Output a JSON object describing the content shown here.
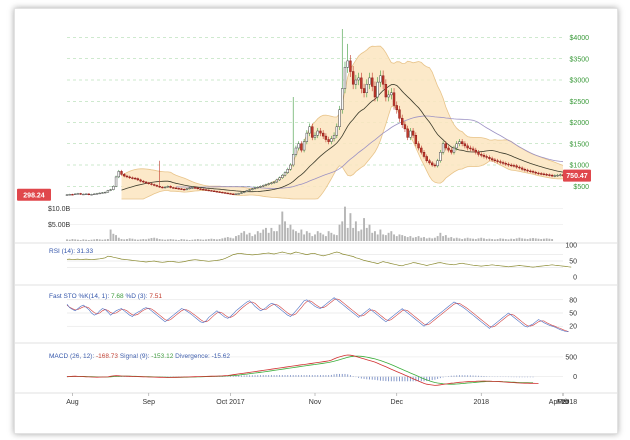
{
  "chart_data": {
    "type": "candlestick",
    "price": {
      "current_tag": "750.47",
      "left_tag": "298.24",
      "y_ticks": [
        "$500",
        "$1000",
        "$1500",
        "$2000",
        "$2500",
        "$3000",
        "$3500",
        "$4000"
      ],
      "y_tick_values": [
        500,
        1000,
        1500,
        2000,
        2500,
        3000,
        3500,
        4000
      ],
      "ylim": [
        200,
        4200
      ],
      "closes": [
        300,
        310,
        305,
        320,
        330,
        310,
        315,
        320,
        300,
        310,
        320,
        330,
        340,
        350,
        360,
        400,
        420,
        500,
        720,
        850,
        780,
        740,
        720,
        700,
        690,
        680,
        650,
        620,
        600,
        580,
        560,
        540,
        520,
        500,
        480,
        470,
        480,
        500,
        470,
        460,
        450,
        440,
        430,
        420,
        440,
        460,
        470,
        460,
        440,
        430,
        420,
        410,
        400,
        390,
        380,
        370,
        360,
        350,
        340,
        330,
        320,
        315,
        320,
        330,
        350,
        370,
        400,
        420,
        440,
        460,
        480,
        500,
        520,
        540,
        560,
        580,
        600,
        650,
        700,
        760,
        820,
        900,
        1000,
        1250,
        1400,
        1500,
        1350,
        1550,
        1750,
        1900,
        1650,
        1700,
        1800,
        1750,
        1680,
        1600,
        1550,
        1620,
        1700,
        1900,
        2300,
        2800,
        3300,
        3450,
        3200,
        2900,
        3000,
        3050,
        2800,
        2700,
        2900,
        3050,
        2850,
        2600,
        2950,
        3100,
        2900,
        2600,
        2650,
        2700,
        2400,
        2300,
        2100,
        1950,
        1850,
        1650,
        1800,
        1700,
        1500,
        1400,
        1300,
        1200,
        1100,
        1050,
        1000,
        980,
        1100,
        1300,
        1500,
        1400,
        1350,
        1300,
        1400,
        1500,
        1550,
        1500,
        1450,
        1400,
        1380,
        1350,
        1300,
        1250,
        1230,
        1200,
        1180,
        1150,
        1120,
        1100,
        1080,
        1060,
        1040,
        1020,
        1000,
        990,
        980,
        950,
        930,
        900,
        880,
        860,
        850,
        830,
        810,
        800,
        790,
        780,
        770,
        760,
        740,
        750,
        760,
        770,
        750
      ],
      "spikes": [
        {
          "i": 34,
          "high": 1100
        },
        {
          "i": 83,
          "high": 2600
        },
        {
          "i": 101,
          "high": 4200
        },
        {
          "i": 103,
          "high": 3850
        }
      ]
    },
    "volume": {
      "ticks": [
        "$10.0B",
        "$5.00B"
      ],
      "tick_values": [
        10,
        5
      ],
      "values_b": [
        0.5,
        0.4,
        0.6,
        0.5,
        0.4,
        0.3,
        0.5,
        0.4,
        0.3,
        0.4,
        0.5,
        0.6,
        0.5,
        0.4,
        0.5,
        0.6,
        3.5,
        2.2,
        1.8,
        1.0,
        0.6,
        0.5,
        0.6,
        0.8,
        0.7,
        0.5,
        0.4,
        0.5,
        0.6,
        0.5,
        0.7,
        0.9,
        1.0,
        0.8,
        0.6,
        0.5,
        0.4,
        0.5,
        0.6,
        0.5,
        0.4,
        0.3,
        0.6,
        0.5,
        0.4,
        0.3,
        0.4,
        0.5,
        0.6,
        0.5,
        0.4,
        0.5,
        0.6,
        0.7,
        0.6,
        0.5,
        0.6,
        0.8,
        1.0,
        1.2,
        1.0,
        0.8,
        1.5,
        1.8,
        2.5,
        3.0,
        2.0,
        2.5,
        1.5,
        2.0,
        3.0,
        2.5,
        3.5,
        4.0,
        2.5,
        4.0,
        3.0,
        3.0,
        5.0,
        9.0,
        6.0,
        4.0,
        5.0,
        3.5,
        3.0,
        2.5,
        3.5,
        2.0,
        3.0,
        2.5,
        1.5,
        2.0,
        3.0,
        2.5,
        2.0,
        1.5,
        3.0,
        2.5,
        2.0,
        1.8,
        5.0,
        6.0,
        10.5,
        4.0,
        8.5,
        4.0,
        6.0,
        3.0,
        3.5,
        7.0,
        4.0,
        5.0,
        2.5,
        3.0,
        2.0,
        3.5,
        2.0,
        1.8,
        2.5,
        3.0,
        2.0,
        1.5,
        2.0,
        1.8,
        1.5,
        1.2,
        1.5,
        1.0,
        1.2,
        1.5,
        1.0,
        1.2,
        0.8,
        1.0,
        0.8,
        1.0,
        1.5,
        2.5,
        1.5,
        1.8,
        1.0,
        1.2,
        0.8,
        1.0,
        0.8,
        0.6,
        0.8,
        1.0,
        0.8,
        0.7,
        0.6,
        0.8,
        1.0,
        0.8,
        0.6,
        0.7,
        0.6,
        0.5,
        0.6,
        0.8,
        0.7,
        0.6,
        0.5,
        0.7,
        0.6,
        0.8,
        1.0,
        0.8,
        0.7,
        0.6,
        0.8,
        0.9,
        0.8,
        0.7,
        0.6,
        0.7,
        0.8,
        0.7,
        0.6
      ]
    },
    "rsi": {
      "label": "RSI (14): 31.33",
      "ticks": [
        "100",
        "50",
        "0"
      ],
      "tick_values": [
        100,
        50,
        0
      ],
      "values": [
        55,
        56,
        54,
        55,
        56,
        54,
        55,
        56,
        55,
        54,
        55,
        56,
        57,
        58,
        60,
        65,
        64,
        62,
        60,
        58,
        56,
        55,
        54,
        53,
        52,
        51,
        50,
        49,
        48,
        47,
        48,
        49,
        50,
        48,
        47,
        46,
        47,
        48,
        49,
        48,
        47,
        46,
        47,
        48,
        50,
        52,
        53,
        54,
        53,
        52,
        51,
        50,
        49,
        50,
        51,
        52,
        53,
        55,
        58,
        62,
        66,
        70,
        72,
        74,
        73,
        72,
        71,
        70,
        69,
        70,
        71,
        72,
        73,
        74,
        75,
        73,
        72,
        74,
        76,
        78,
        76,
        74,
        72,
        75,
        78,
        76,
        74,
        72,
        70,
        72,
        74,
        73,
        70,
        68,
        66,
        68,
        70,
        73,
        76,
        78,
        76,
        72,
        70,
        68,
        66,
        64,
        60,
        58,
        55,
        52,
        50,
        48,
        46,
        44,
        42,
        45,
        48,
        46,
        44,
        42,
        40,
        38,
        36,
        35,
        38,
        40,
        42,
        45,
        44,
        42,
        40,
        38,
        36,
        38,
        40,
        42,
        44,
        45,
        43,
        41,
        40,
        39,
        38,
        40,
        42,
        43,
        41,
        40,
        38,
        37,
        36,
        35,
        34,
        35,
        36,
        37,
        38,
        37,
        36,
        35,
        34,
        33,
        32,
        33,
        34,
        35,
        36,
        35,
        34,
        33,
        32,
        31,
        32,
        33,
        34,
        35,
        36,
        37,
        38,
        37,
        36,
        35,
        34,
        33,
        32,
        31
      ]
    },
    "sto": {
      "label_prefix": "Fast STO %K(14, 1): ",
      "k_value": "7.68",
      "d_label": " %D (3): ",
      "d_value": "7.51",
      "ticks": [
        "80",
        "50",
        "20"
      ],
      "tick_values": [
        80,
        50,
        20
      ],
      "k": [
        70,
        62,
        58,
        55,
        60,
        65,
        68,
        63,
        58,
        50,
        45,
        48,
        55,
        60,
        58,
        52,
        45,
        50,
        55,
        58,
        60,
        55,
        50,
        45,
        42,
        48,
        52,
        55,
        60,
        62,
        60,
        55,
        50,
        45,
        40,
        35,
        30,
        35,
        40,
        45,
        50,
        55,
        60,
        58,
        54,
        50,
        45,
        40,
        35,
        30,
        28,
        32,
        40,
        45,
        50,
        55,
        50,
        45,
        40,
        38,
        42,
        48,
        55,
        60,
        65,
        70,
        75,
        78,
        72,
        65,
        60,
        55,
        58,
        62,
        68,
        72,
        70,
        65,
        60,
        55,
        50,
        45,
        42,
        48,
        55,
        62,
        70,
        78,
        80,
        75,
        70,
        65,
        62,
        60,
        65,
        70,
        75,
        80,
        85,
        80,
        75,
        70,
        65,
        60,
        55,
        50,
        45,
        40,
        45,
        50,
        55,
        60,
        55,
        50,
        45,
        40,
        35,
        30,
        35,
        40,
        45,
        50,
        55,
        60,
        55,
        50,
        45,
        40,
        35,
        30,
        25,
        20,
        25,
        30,
        35,
        40,
        45,
        50,
        55,
        60,
        65,
        70,
        75,
        72,
        68,
        64,
        60,
        55,
        50,
        45,
        40,
        35,
        30,
        25,
        20,
        15,
        20,
        25,
        30,
        35,
        40,
        45,
        50,
        45,
        40,
        35,
        30,
        25,
        20,
        18,
        22,
        25,
        30,
        35,
        32,
        28,
        25,
        22,
        20,
        18,
        15,
        12,
        10,
        8,
        7.68
      ],
      "d": [
        68,
        63,
        60,
        57,
        58,
        61,
        64,
        64,
        62,
        56,
        51,
        48,
        50,
        55,
        58,
        56,
        51,
        49,
        50,
        54,
        58,
        58,
        55,
        50,
        46,
        45,
        47,
        52,
        56,
        59,
        61,
        59,
        55,
        50,
        45,
        40,
        35,
        33,
        35,
        40,
        45,
        50,
        55,
        58,
        57,
        54,
        49,
        45,
        40,
        35,
        31,
        30,
        33,
        39,
        45,
        50,
        52,
        50,
        45,
        41,
        40,
        43,
        48,
        54,
        60,
        65,
        70,
        74,
        75,
        72,
        66,
        60,
        58,
        58,
        63,
        67,
        70,
        69,
        65,
        60,
        55,
        50,
        46,
        45,
        48,
        55,
        62,
        70,
        76,
        78,
        75,
        70,
        66,
        62,
        62,
        65,
        70,
        75,
        80,
        82,
        80,
        75,
        70,
        65,
        60,
        55,
        50,
        45,
        43,
        45,
        50,
        55,
        57,
        55,
        50,
        45,
        40,
        35,
        33,
        35,
        40,
        45,
        50,
        55,
        57,
        55,
        50,
        45,
        40,
        35,
        30,
        25,
        23,
        25,
        30,
        35,
        40,
        45,
        50,
        55,
        60,
        65,
        70,
        72,
        72,
        68,
        64,
        60,
        55,
        50,
        45,
        40,
        35,
        30,
        25,
        20,
        18,
        20,
        25,
        30,
        35,
        40,
        45,
        47,
        45,
        40,
        35,
        30,
        25,
        21,
        20,
        22,
        26,
        30,
        32,
        32,
        28,
        25,
        22,
        20,
        17,
        15,
        12,
        10,
        7.51
      ]
    },
    "macd": {
      "label_prefix": "MACD (26, 12): ",
      "macd_value": "-168.73",
      "signal_label": " Signal (9): ",
      "signal_value": "-153.12",
      "div_label": " Divergence: ",
      "div_value": "-15.62",
      "ticks": [
        "500",
        "0"
      ],
      "tick_values": [
        500,
        0
      ],
      "ylim": [
        -260,
        650
      ],
      "macd": [
        0,
        5,
        10,
        12,
        8,
        5,
        2,
        -2,
        -5,
        -8,
        -10,
        -12,
        -10,
        -8,
        -6,
        -4,
        10,
        20,
        25,
        22,
        18,
        15,
        12,
        10,
        8,
        5,
        2,
        0,
        -2,
        -4,
        -6,
        -8,
        -10,
        -12,
        -14,
        -16,
        -18,
        -20,
        -18,
        -16,
        -14,
        -12,
        -10,
        -8,
        -6,
        -4,
        -2,
        0,
        2,
        4,
        6,
        8,
        10,
        12,
        14,
        16,
        18,
        20,
        25,
        30,
        40,
        50,
        60,
        70,
        80,
        90,
        100,
        110,
        120,
        130,
        140,
        150,
        160,
        170,
        180,
        190,
        200,
        210,
        220,
        230,
        240,
        250,
        260,
        270,
        280,
        290,
        300,
        310,
        320,
        330,
        340,
        350,
        360,
        370,
        380,
        390,
        400,
        420,
        450,
        480,
        500,
        520,
        540,
        550,
        545,
        530,
        510,
        490,
        470,
        450,
        430,
        410,
        390,
        370,
        340,
        310,
        280,
        250,
        220,
        190,
        160,
        130,
        100,
        70,
        40,
        10,
        -20,
        -50,
        -80,
        -110,
        -140,
        -170,
        -190,
        -200,
        -210,
        -220,
        -215,
        -205,
        -195,
        -185,
        -175,
        -165,
        -160,
        -150,
        -140,
        -135,
        -130,
        -125,
        -120,
        -118,
        -115,
        -112,
        -110,
        -108,
        -110,
        -112,
        -115,
        -118,
        -120,
        -125,
        -130,
        -135,
        -140,
        -145,
        -150,
        -155,
        -160,
        -162,
        -164,
        -165,
        -166,
        -167,
        -168,
        -168.73
      ],
      "signal": [
        0,
        2,
        5,
        8,
        9,
        8,
        7,
        5,
        3,
        0,
        -3,
        -5,
        -7,
        -8,
        -8,
        -7,
        -3,
        2,
        7,
        10,
        12,
        13,
        13,
        12,
        11,
        10,
        8,
        6,
        4,
        2,
        0,
        -2,
        -4,
        -6,
        -8,
        -10,
        -12,
        -14,
        -15,
        -16,
        -16,
        -15,
        -14,
        -13,
        -12,
        -10,
        -8,
        -6,
        -4,
        -2,
        0,
        2,
        4,
        6,
        8,
        10,
        12,
        14,
        17,
        20,
        25,
        30,
        36,
        42,
        50,
        58,
        66,
        75,
        84,
        93,
        102,
        111,
        120,
        130,
        140,
        150,
        160,
        170,
        180,
        190,
        200,
        210,
        220,
        230,
        240,
        250,
        260,
        270,
        280,
        290,
        300,
        310,
        320,
        330,
        340,
        350,
        360,
        375,
        390,
        410,
        430,
        450,
        470,
        490,
        505,
        515,
        520,
        520,
        515,
        505,
        495,
        480,
        465,
        450,
        430,
        410,
        385,
        360,
        335,
        305,
        275,
        245,
        215,
        185,
        155,
        125,
        95,
        65,
        35,
        5,
        -25,
        -55,
        -80,
        -105,
        -125,
        -145,
        -160,
        -170,
        -178,
        -184,
        -188,
        -190,
        -188,
        -184,
        -178,
        -172,
        -166,
        -160,
        -154,
        -148,
        -142,
        -136,
        -130,
        -126,
        -122,
        -120,
        -118,
        -118,
        -120,
        -122,
        -125,
        -128,
        -131,
        -135,
        -139,
        -143,
        -146,
        -149,
        -151,
        -152,
        -153,
        -153.12
      ]
    },
    "x_labels": [
      "Aug",
      "Sep",
      "Oct 2017",
      "Nov",
      "Dec",
      "2018",
      "Feb",
      "Mar",
      "Apr 2018"
    ],
    "x_label_index": [
      2,
      30,
      60,
      91,
      121,
      152,
      183,
      211,
      242
    ]
  }
}
